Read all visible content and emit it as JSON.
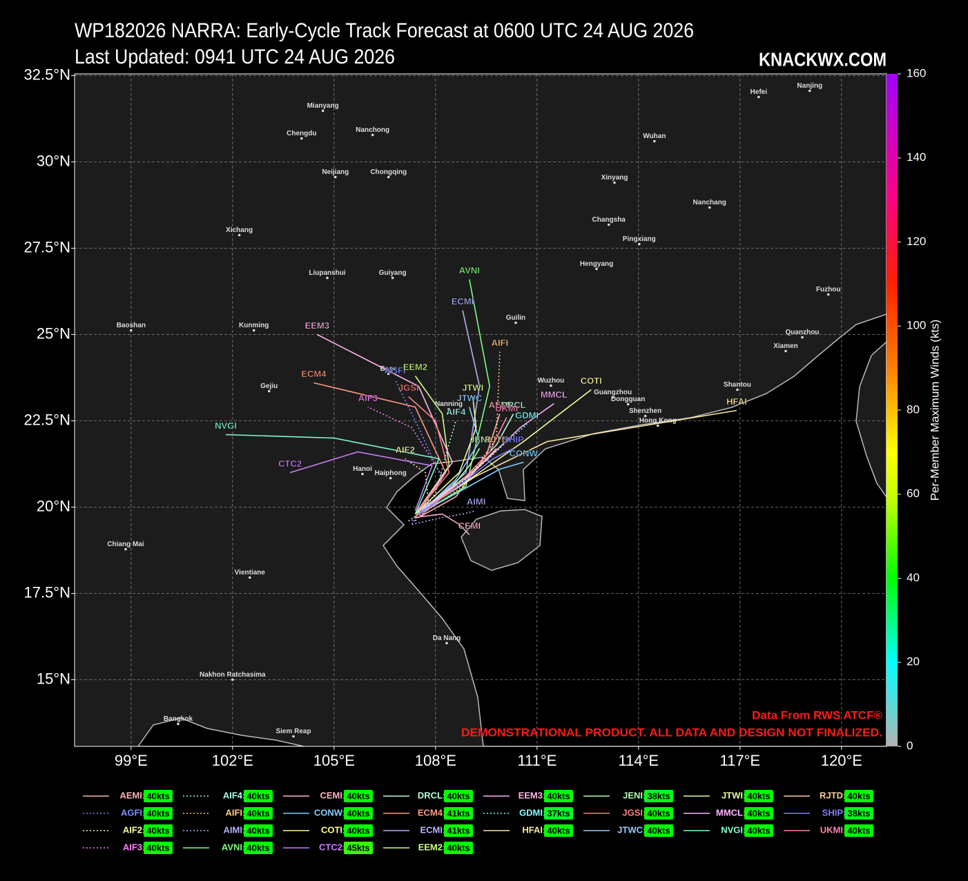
{
  "chart_data": {
    "type": "track_map",
    "title": "WP182026 NARRA: Early-Cycle Track Forecast at 0600 UTC 24 AUG 2026",
    "subtitle": "Last Updated: 0941 UTC 24 AUG 2026",
    "brand": "KNACKWX.COM",
    "source_note": "Data From RWS ATCF®",
    "disclaimer": "DEMONSTRATIONAL PRODUCT. ALL DATA AND DESIGN NOT FINALIZED.",
    "legend_separator": ":",
    "xlim": [
      97.33,
      121.33
    ],
    "ylim": [
      13.07,
      32.55
    ],
    "xticks": [
      {
        "value": 99,
        "label": "99°E"
      },
      {
        "value": 102,
        "label": "102°E"
      },
      {
        "value": 105,
        "label": "105°E"
      },
      {
        "value": 108,
        "label": "108°E"
      },
      {
        "value": 111,
        "label": "111°E"
      },
      {
        "value": 114,
        "label": "114°E"
      },
      {
        "value": 117,
        "label": "117°E"
      },
      {
        "value": 120,
        "label": "120°E"
      }
    ],
    "yticks": [
      {
        "value": 15,
        "label": "15°N"
      },
      {
        "value": 17.5,
        "label": "17.5°N"
      },
      {
        "value": 20,
        "label": "20°N"
      },
      {
        "value": 22.5,
        "label": "22.5°N"
      },
      {
        "value": 25,
        "label": "25°N"
      },
      {
        "value": 27.5,
        "label": "27.5°N"
      },
      {
        "value": 30,
        "label": "30°N"
      },
      {
        "value": 32.5,
        "label": "32.5°N"
      }
    ],
    "grid": true,
    "colorbar": {
      "label": "Per-Member Maximum Winds (kts)",
      "lim": [
        0,
        160
      ],
      "ticks": [
        0,
        20,
        40,
        60,
        80,
        100,
        120,
        140,
        160
      ],
      "stops": [
        {
          "value": 0,
          "color": "#b3b3b3"
        },
        {
          "value": 20,
          "color": "#00ffff"
        },
        {
          "value": 40,
          "color": "#00ff00"
        },
        {
          "value": 60,
          "color": "#ccff00"
        },
        {
          "value": 70,
          "color": "#ffff00"
        },
        {
          "value": 90,
          "color": "#ff8000"
        },
        {
          "value": 110,
          "color": "#ff2000"
        },
        {
          "value": 130,
          "color": "#ff0080"
        },
        {
          "value": 160,
          "color": "#a000ff"
        }
      ]
    },
    "series": [
      {
        "name": "AEMI",
        "color": "#ffb3b3",
        "linestyle": "solid",
        "lon": [
          107.5,
          108.6,
          109.5,
          109.9
        ],
        "lat": [
          19.7,
          20.3,
          21.5,
          22.7
        ],
        "max_wind": 40,
        "max_wind_label": "40kts"
      },
      {
        "name": "AGFI",
        "color": "#8090ff",
        "linestyle": "dotted",
        "lon": [
          107.3,
          108.2,
          107.5,
          106.8
        ],
        "lat": [
          19.6,
          20.8,
          22.3,
          23.7
        ],
        "max_wind": 40,
        "max_wind_label": "40kts"
      },
      {
        "name": "AIF2",
        "color": "#ffffaa",
        "linestyle": "dotted",
        "lon": [
          107.2,
          107.8,
          107.7,
          107.1
        ],
        "lat": [
          19.6,
          20.0,
          21.0,
          21.4
        ],
        "max_wind": 40,
        "max_wind_label": "40kts"
      },
      {
        "name": "AIF3",
        "color": "#ff80ff",
        "linestyle": "dotted",
        "lon": [
          107.3,
          108.2,
          107.3,
          106.0
        ],
        "lat": [
          19.5,
          20.9,
          22.3,
          22.9
        ],
        "max_wind": 40,
        "max_wind_label": "40kts"
      },
      {
        "name": "AIF4",
        "color": "#aaffee",
        "linestyle": "dotted",
        "lon": [
          107.4,
          108.0,
          108.3,
          108.6
        ],
        "lat": [
          19.6,
          20.4,
          21.5,
          22.5
        ],
        "max_wind": 40,
        "max_wind_label": "40kts"
      },
      {
        "name": "AIFI",
        "color": "#ffcc80",
        "linestyle": "dotted",
        "lon": [
          107.6,
          108.8,
          109.8,
          109.9
        ],
        "lat": [
          19.8,
          20.6,
          22.0,
          24.5
        ],
        "max_wind": 40,
        "max_wind_label": "40kts"
      },
      {
        "name": "AIMI",
        "color": "#b3b3ff",
        "linestyle": "dotted",
        "lon": [
          107.3,
          108.2,
          108.8,
          109.2
        ],
        "lat": [
          19.5,
          19.7,
          19.8,
          19.9
        ],
        "max_wind": 40,
        "max_wind_label": "40kts"
      },
      {
        "name": "AVNI",
        "color": "#80ff80",
        "linestyle": "solid",
        "lon": [
          107.5,
          108.9,
          109.6,
          109.0
        ],
        "lat": [
          19.8,
          20.6,
          23.5,
          26.6
        ],
        "max_wind": 40,
        "max_wind_label": "40kts"
      },
      {
        "name": "CEMI",
        "color": "#ffb3c6",
        "linestyle": "solid",
        "lon": [
          107.4,
          108.2,
          108.7,
          109.0
        ],
        "lat": [
          19.7,
          19.8,
          19.5,
          19.2
        ],
        "max_wind": 40,
        "max_wind_label": "40kts"
      },
      {
        "name": "CONW",
        "color": "#80d0ff",
        "linestyle": "solid",
        "lon": [
          107.5,
          108.8,
          109.9,
          110.6
        ],
        "lat": [
          19.8,
          20.5,
          21.1,
          21.3
        ],
        "max_wind": 40,
        "max_wind_label": "40kts"
      },
      {
        "name": "COTI",
        "color": "#ffff99",
        "linestyle": "solid",
        "lon": [
          107.6,
          109.0,
          110.6,
          112.6
        ],
        "lat": [
          19.9,
          20.8,
          21.9,
          23.4
        ],
        "max_wind": 40,
        "max_wind_label": "40kts"
      },
      {
        "name": "CTC2",
        "color": "#cc80ff",
        "linestyle": "solid",
        "lon": [
          107.4,
          107.9,
          105.7,
          103.7
        ],
        "lat": [
          19.9,
          21.2,
          21.6,
          21.0
        ],
        "max_wind": 45,
        "max_wind_label": "45kts"
      },
      {
        "name": "DRCL",
        "color": "#b3ffd9",
        "linestyle": "solid",
        "lon": [
          107.5,
          108.9,
          109.8,
          110.3
        ],
        "lat": [
          19.8,
          20.9,
          21.8,
          22.7
        ],
        "max_wind": 40,
        "max_wind_label": "40kts"
      },
      {
        "name": "ECM4",
        "color": "#ff9980",
        "linestyle": "solid",
        "lon": [
          107.4,
          108.3,
          107.4,
          104.4
        ],
        "lat": [
          19.7,
          21.0,
          22.9,
          23.6
        ],
        "max_wind": 41,
        "max_wind_label": "41kts"
      },
      {
        "name": "ECMI",
        "color": "#b3b3ff",
        "linestyle": "solid",
        "lon": [
          107.5,
          108.9,
          109.3,
          108.8
        ],
        "lat": [
          19.8,
          21.0,
          23.5,
          25.7
        ],
        "max_wind": 41,
        "max_wind_label": "41kts"
      },
      {
        "name": "EEM2",
        "color": "#ccff80",
        "linestyle": "solid",
        "lon": [
          107.4,
          108.4,
          108.2,
          107.4
        ],
        "lat": [
          19.8,
          21.2,
          22.7,
          23.8
        ],
        "max_wind": 40,
        "max_wind_label": "40kts"
      },
      {
        "name": "EEM3",
        "color": "#ffb3e6",
        "linestyle": "solid",
        "lon": [
          107.4,
          108.5,
          107.5,
          104.5
        ],
        "lat": [
          19.8,
          21.3,
          23.5,
          25.0
        ],
        "max_wind": 40,
        "max_wind_label": "40kts"
      },
      {
        "name": "GDMI",
        "color": "#80ffff",
        "linestyle": "dotted",
        "lon": [
          107.5,
          108.9,
          110.0,
          110.7
        ],
        "lat": [
          19.9,
          20.8,
          21.8,
          22.4
        ],
        "max_wind": 37,
        "max_wind_label": "37kts"
      },
      {
        "name": "HFAI",
        "color": "#ffe6a0",
        "linestyle": "solid",
        "lon": [
          107.6,
          109.2,
          111.3,
          116.9
        ],
        "lat": [
          19.9,
          20.9,
          21.9,
          22.8
        ],
        "max_wind": 40,
        "max_wind_label": "40kts"
      },
      {
        "name": "JENI",
        "color": "#b3ffb3",
        "linestyle": "solid",
        "lon": [
          107.4,
          108.5,
          109.0,
          109.3
        ],
        "lat": [
          19.8,
          20.6,
          21.2,
          21.7
        ],
        "max_wind": 38,
        "max_wind_label": "38kts"
      },
      {
        "name": "JGSI",
        "color": "#ff8080",
        "linestyle": "solid",
        "lon": [
          107.4,
          108.4,
          108.0,
          107.2
        ],
        "lat": [
          19.8,
          21.0,
          22.5,
          23.2
        ],
        "max_wind": 40,
        "max_wind_label": "40kts"
      },
      {
        "name": "JTWC",
        "color": "#99ccff",
        "linestyle": "solid",
        "lon": [
          107.5,
          108.6,
          109.3,
          109.0
        ],
        "lat": [
          19.8,
          20.8,
          21.9,
          22.9
        ],
        "max_wind": 40,
        "max_wind_label": "40kts"
      },
      {
        "name": "JTWI",
        "color": "#e6ff99",
        "linestyle": "solid",
        "lon": [
          107.4,
          108.7,
          109.2,
          109.1
        ],
        "lat": [
          19.8,
          21.0,
          22.3,
          23.2
        ],
        "max_wind": 40,
        "max_wind_label": "40kts"
      },
      {
        "name": "MMCL",
        "color": "#ffb3ff",
        "linestyle": "solid",
        "lon": [
          107.5,
          109.0,
          110.5,
          111.5
        ],
        "lat": [
          19.9,
          20.9,
          22.3,
          23.0
        ],
        "max_wind": 40,
        "max_wind_label": "40kts"
      },
      {
        "name": "NVGI",
        "color": "#80ffcc",
        "linestyle": "solid",
        "lon": [
          107.4,
          108.1,
          105.0,
          101.8
        ],
        "lat": [
          19.8,
          21.4,
          22.0,
          22.1
        ],
        "max_wind": 40,
        "max_wind_label": "40kts"
      },
      {
        "name": "RJTD",
        "color": "#ffcc99",
        "linestyle": "solid",
        "lon": [
          107.5,
          108.7,
          109.4,
          109.8
        ],
        "lat": [
          19.8,
          20.7,
          21.3,
          21.7
        ],
        "max_wind": 40,
        "max_wind_label": "40kts"
      },
      {
        "name": "SHIP",
        "color": "#8080ff",
        "linestyle": "solid",
        "lon": [
          107.5,
          108.8,
          109.7,
          110.3
        ],
        "lat": [
          19.8,
          20.7,
          21.4,
          21.7
        ],
        "max_wind": 38,
        "max_wind_label": "38kts"
      },
      {
        "name": "UKMI",
        "color": "#ff80b3",
        "linestyle": "solid",
        "lon": [
          107.5,
          108.7,
          109.6,
          110.1
        ],
        "lat": [
          19.7,
          20.7,
          21.6,
          22.6
        ],
        "max_wind": 40,
        "max_wind_label": "40kts"
      }
    ],
    "cities": [
      {
        "name": "Mianyang",
        "lon": 104.67,
        "lat": 31.48
      },
      {
        "name": "Chengdu",
        "lon": 104.04,
        "lat": 30.68
      },
      {
        "name": "Nanchong",
        "lon": 106.14,
        "lat": 30.78
      },
      {
        "name": "Neijiang",
        "lon": 105.04,
        "lat": 29.56
      },
      {
        "name": "Chongqing",
        "lon": 106.61,
        "lat": 29.56
      },
      {
        "name": "Xichang",
        "lon": 102.2,
        "lat": 27.88
      },
      {
        "name": "Liupanshui",
        "lon": 104.8,
        "lat": 26.64
      },
      {
        "name": "Guiyang",
        "lon": 106.73,
        "lat": 26.64
      },
      {
        "name": "Baoshan",
        "lon": 99.0,
        "lat": 25.12
      },
      {
        "name": "Kunming",
        "lon": 102.63,
        "lat": 25.12
      },
      {
        "name": "Gejiu",
        "lon": 103.08,
        "lat": 23.36
      },
      {
        "name": "Bose",
        "lon": 106.61,
        "lat": 23.86
      },
      {
        "name": "Nanning",
        "lon": 108.39,
        "lat": 22.84
      },
      {
        "name": "Hanoi",
        "lon": 105.84,
        "lat": 20.96
      },
      {
        "name": "Haiphong",
        "lon": 106.67,
        "lat": 20.84
      },
      {
        "name": "Guilin",
        "lon": 110.37,
        "lat": 25.34
      },
      {
        "name": "Wuzhou",
        "lon": 111.41,
        "lat": 23.52
      },
      {
        "name": "Guangzhou",
        "lon": 113.24,
        "lat": 23.18
      },
      {
        "name": "Dongguan",
        "lon": 113.69,
        "lat": 22.98
      },
      {
        "name": "Shenzhen",
        "lon": 114.2,
        "lat": 22.64
      },
      {
        "name": "Hong Kong",
        "lon": 114.57,
        "lat": 22.36
      },
      {
        "name": "Shantou",
        "lon": 116.92,
        "lat": 23.4
      },
      {
        "name": "Xiamen",
        "lon": 118.35,
        "lat": 24.52
      },
      {
        "name": "Quanzhou",
        "lon": 118.84,
        "lat": 24.92
      },
      {
        "name": "Fuzhou",
        "lon": 119.61,
        "lat": 26.16
      },
      {
        "name": "Hengyang",
        "lon": 112.76,
        "lat": 26.9
      },
      {
        "name": "Changsha",
        "lon": 113.12,
        "lat": 28.18
      },
      {
        "name": "Pingxiang",
        "lon": 114.02,
        "lat": 27.62
      },
      {
        "name": "Xinyang",
        "lon": 113.29,
        "lat": 29.4
      },
      {
        "name": "Nanchang",
        "lon": 116.1,
        "lat": 28.68
      },
      {
        "name": "Wuhan",
        "lon": 114.47,
        "lat": 30.6
      },
      {
        "name": "Hefei",
        "lon": 117.55,
        "lat": 31.88
      },
      {
        "name": "Nanjing",
        "lon": 119.06,
        "lat": 32.06
      },
      {
        "name": "Chiang Mai",
        "lon": 98.84,
        "lat": 18.78
      },
      {
        "name": "Vientiane",
        "lon": 102.51,
        "lat": 17.96
      },
      {
        "name": "Da Nang",
        "lon": 108.33,
        "lat": 16.06
      },
      {
        "name": "Nakhon Ratchasima",
        "lon": 102.0,
        "lat": 15.0
      },
      {
        "name": "Bangkok",
        "lon": 100.39,
        "lat": 13.72
      },
      {
        "name": "Siem Reap",
        "lon": 103.8,
        "lat": 13.36
      }
    ]
  }
}
